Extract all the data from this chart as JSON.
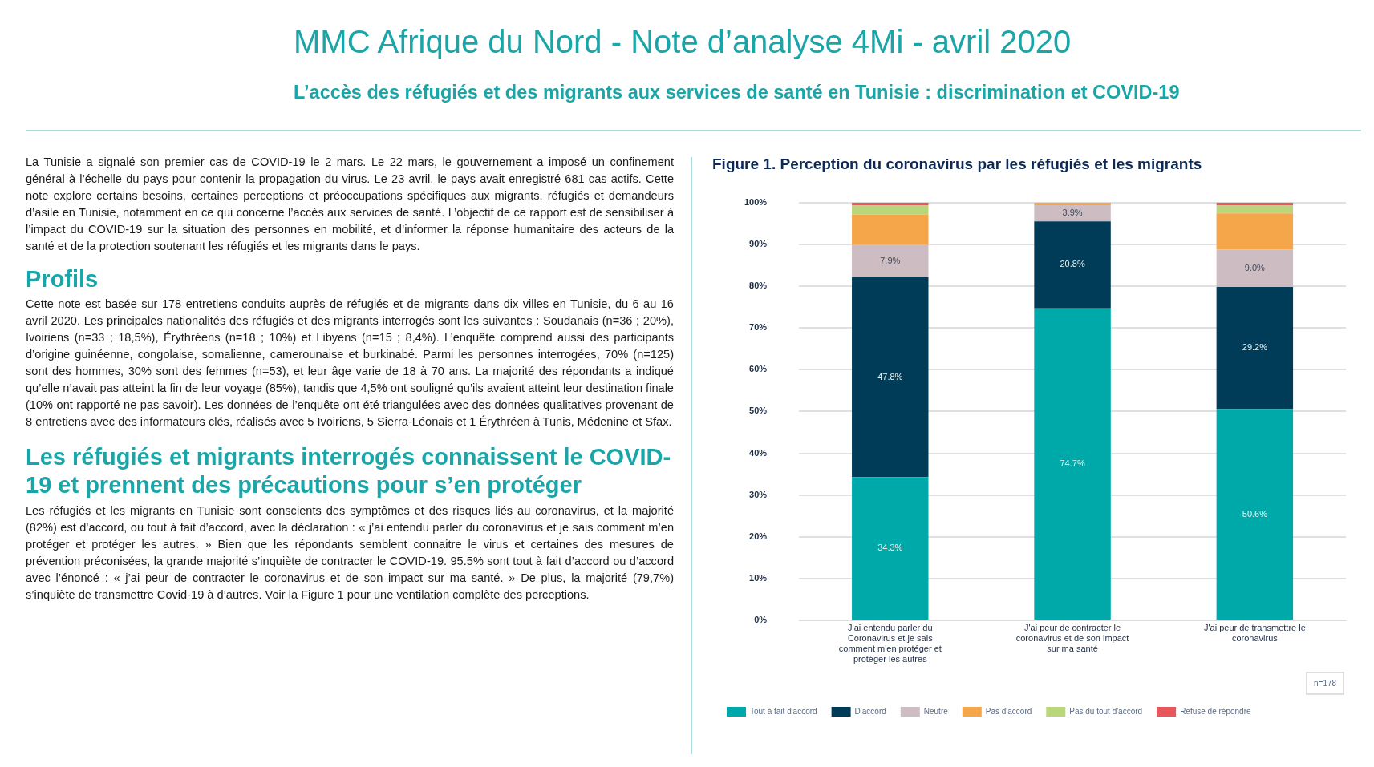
{
  "chart_data": {
    "type": "bar",
    "stacked": true,
    "title": "Figure 1. Perception du coronavirus par les réfugiés et les migrants",
    "categories": [
      "J'ai entendu parler du Coronavirus et je sais comment m'en protéger et protéger les autres",
      "J'ai peur de contracter le coronavirus et de son impact sur ma santé",
      "J'ai peur de transmettre le coronavirus"
    ],
    "series": [
      {
        "name": "Tout à fait d'accord",
        "color": "#00a9a9",
        "values": [
          34.3,
          74.7,
          50.6
        ],
        "value_labels": [
          "34.3%",
          "74.7%",
          "50.6%"
        ]
      },
      {
        "name": "D'accord",
        "color": "#003b57",
        "values": [
          47.8,
          20.8,
          29.2
        ],
        "value_labels": [
          "47.8%",
          "20.8%",
          "29.2%"
        ]
      },
      {
        "name": "Neutre",
        "color": "#cdbdc3",
        "values": [
          7.9,
          3.9,
          9.0
        ],
        "value_labels": [
          "7.9%",
          "3.9%",
          "9.0%"
        ]
      },
      {
        "name": "Pas d'accord",
        "color": "#f5a64a",
        "values": [
          7.2,
          0.6,
          8.6
        ]
      },
      {
        "name": "Pas du tout d'accord",
        "color": "#b9d77a",
        "values": [
          2.1,
          0,
          1.9
        ]
      },
      {
        "name": "Refuse de répondre",
        "color": "#e8575b",
        "values": [
          0.7,
          0,
          0.7
        ]
      }
    ],
    "ylim": [
      0,
      100
    ],
    "yticks": [
      {
        "value": 0,
        "label": "0%"
      },
      {
        "value": 10,
        "label": "10%"
      },
      {
        "value": 20,
        "label": "20%"
      },
      {
        "value": 30,
        "label": "30%"
      },
      {
        "value": 40,
        "label": "40%"
      },
      {
        "value": 50,
        "label": "50%"
      },
      {
        "value": 60,
        "label": "60%"
      },
      {
        "value": 70,
        "label": "70%"
      },
      {
        "value": 80,
        "label": "80%"
      },
      {
        "value": 90,
        "label": "90%"
      },
      {
        "value": 100,
        "label": "100%"
      }
    ],
    "grid": "y",
    "legend": "bottom",
    "annotations": [
      "MMC Afrique du Nord - Note d’analyse 4Mi - avril 2020",
      "L’accès des réfugiés et des migrants aux services de santé en Tunisie : discrimination et COVID-19",
      "La Tunisie a signalé son premier cas de COVID-19 le 2 mars. Le 22 mars, le gouvernement a imposé un confinement général à l’échelle du pays pour contenir la propagation du virus. Le 23 avril, le pays avait enregistré 681 cas actifs. Cette note explore certains besoins, certaines perceptions et préoccupations spécifiques aux migrants, réfugiés et demandeurs d’asile en Tunisie, notamment en ce qui concerne l’accès aux services de santé. L’objectif de ce rapport est de sensibiliser à l’impact du COVID-19 sur la situation des personnes en mobilité, et d’informer la réponse humanitaire des acteurs de la santé et de la protection soutenant les réfugiés et les migrants dans le pays.",
      "Profils",
      "Cette note est basée sur 178 entretiens conduits auprès de réfugiés et de migrants dans dix villes en Tunisie, du 6 au 16 avril 2020. Les principales nationalités des réfugiés et des migrants interrogés sont les suivantes : Soudanais (n=36 ; 20%), Ivoiriens (n=33 ; 18,5%), Érythréens (n=18 ; 10%) et Libyens (n=15 ; 8,4%). L’enquête comprend aussi des participants d’origine guinéenne, congolaise, somalienne, camerounaise et burkinabé. Parmi les personnes interrogées, 70% (n=125) sont des hommes, 30% sont des femmes (n=53), et leur âge varie de 18 à 70 ans. La majorité des répondants a indiqué qu’elle n’avait pas atteint la fin de leur voyage (85%), tandis que 4,5% ont souligné qu’ils avaient atteint leur destination finale (10% ont rapporté ne pas savoir). Les données de l’enquête ont été triangulées avec des données qualitatives provenant de 8 entretiens avec des informateurs clés, réalisés avec 5 Ivoiriens, 5 Sierra-Léonais et 1 Érythréen à Tunis, Médenine et Sfax.",
      "Les réfugiés et migrants interrogés connaissent le COVID-19 et prennent des précautions pour s’en protéger",
      "Les réfugiés et les migrants en Tunisie sont conscients des symptômes et des risques liés au coronavirus, et la majorité (82%) est d’accord, ou tout à fait d’accord, avec la déclaration : « j’ai entendu parler du coronavirus et je sais comment m’en protéger et protéger les autres. »  Bien que les répondants semblent connaitre le virus et certaines des mesures de prévention préconisées, la grande majorité s’inquiète de contracter le COVID-19. 95.5% sont tout à fait d’accord ou d’accord avec l’énoncé : « j’ai peur de contracter le coronavirus et de son impact sur ma santé. » De plus, la majorité (79,7%) s’inquiète de transmettre Covid-19 à d’autres. Voir la Figure 1 pour une ventilation complète des perceptions.",
      "n=178"
    ]
  }
}
